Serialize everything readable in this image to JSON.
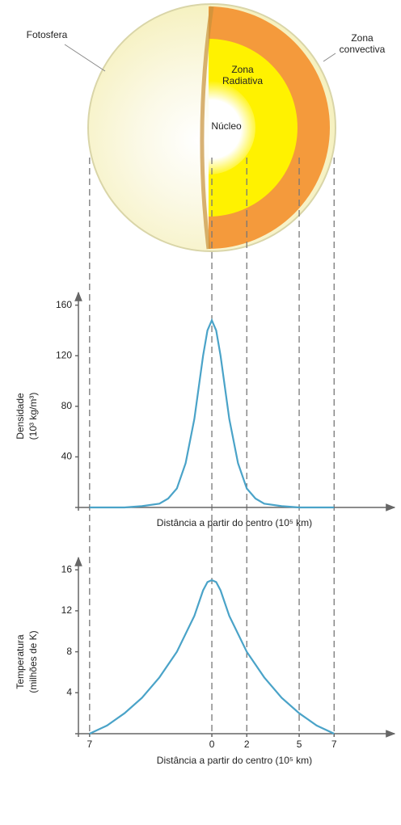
{
  "diagram": {
    "labels": [
      "Fotosfera",
      "Zona",
      "convectiva",
      "Zona",
      "Radiativa",
      "Núcleo"
    ]
  },
  "chart_data": [
    {
      "type": "line",
      "ylabel": [
        "Densidade",
        "(10³ kg/m³)"
      ],
      "xlabel": "Distância a partir do centro (10⁵ km)",
      "xlim": [
        -7.64,
        10.46
      ],
      "ylim": [
        0,
        170
      ],
      "yticks": [
        40,
        80,
        120,
        160
      ],
      "series": [
        {
          "name": null,
          "color": "#4aa3c8",
          "x": [
            -7,
            -6,
            -5,
            -4,
            -3,
            -2.5,
            -2,
            -1.5,
            -1,
            -0.5,
            -0.25,
            0,
            0.25,
            0.5,
            1,
            1.5,
            2,
            2.5,
            3,
            4,
            5,
            6,
            7
          ],
          "values": [
            0,
            0,
            0,
            1,
            3,
            7,
            15,
            35,
            70,
            120,
            140,
            148,
            140,
            120,
            70,
            35,
            15,
            7,
            3,
            1,
            0,
            0,
            0
          ]
        }
      ]
    },
    {
      "type": "line",
      "ylabel": [
        "Temperatura",
        "(milhões de K)"
      ],
      "xlabel": "Distância a partir do centro (10⁵ km)",
      "xlim": [
        -7.64,
        10.46
      ],
      "ylim": [
        0,
        17.2
      ],
      "yticks": [
        4,
        8,
        12,
        16
      ],
      "xticks": [
        {
          "value": -7,
          "label": "7"
        },
        0,
        2,
        5,
        7
      ],
      "series": [
        {
          "name": null,
          "color": "#4aa3c8",
          "x": [
            -7,
            -6,
            -5,
            -4,
            -3,
            -2,
            -1,
            -0.5,
            -0.25,
            0,
            0.25,
            0.5,
            1,
            2,
            3,
            4,
            5,
            6,
            7
          ],
          "values": [
            0,
            0.8,
            2,
            3.5,
            5.5,
            8,
            11.5,
            14,
            14.8,
            15,
            14.8,
            14,
            11.5,
            8,
            5.5,
            3.5,
            2,
            0.8,
            0
          ]
        }
      ]
    }
  ]
}
